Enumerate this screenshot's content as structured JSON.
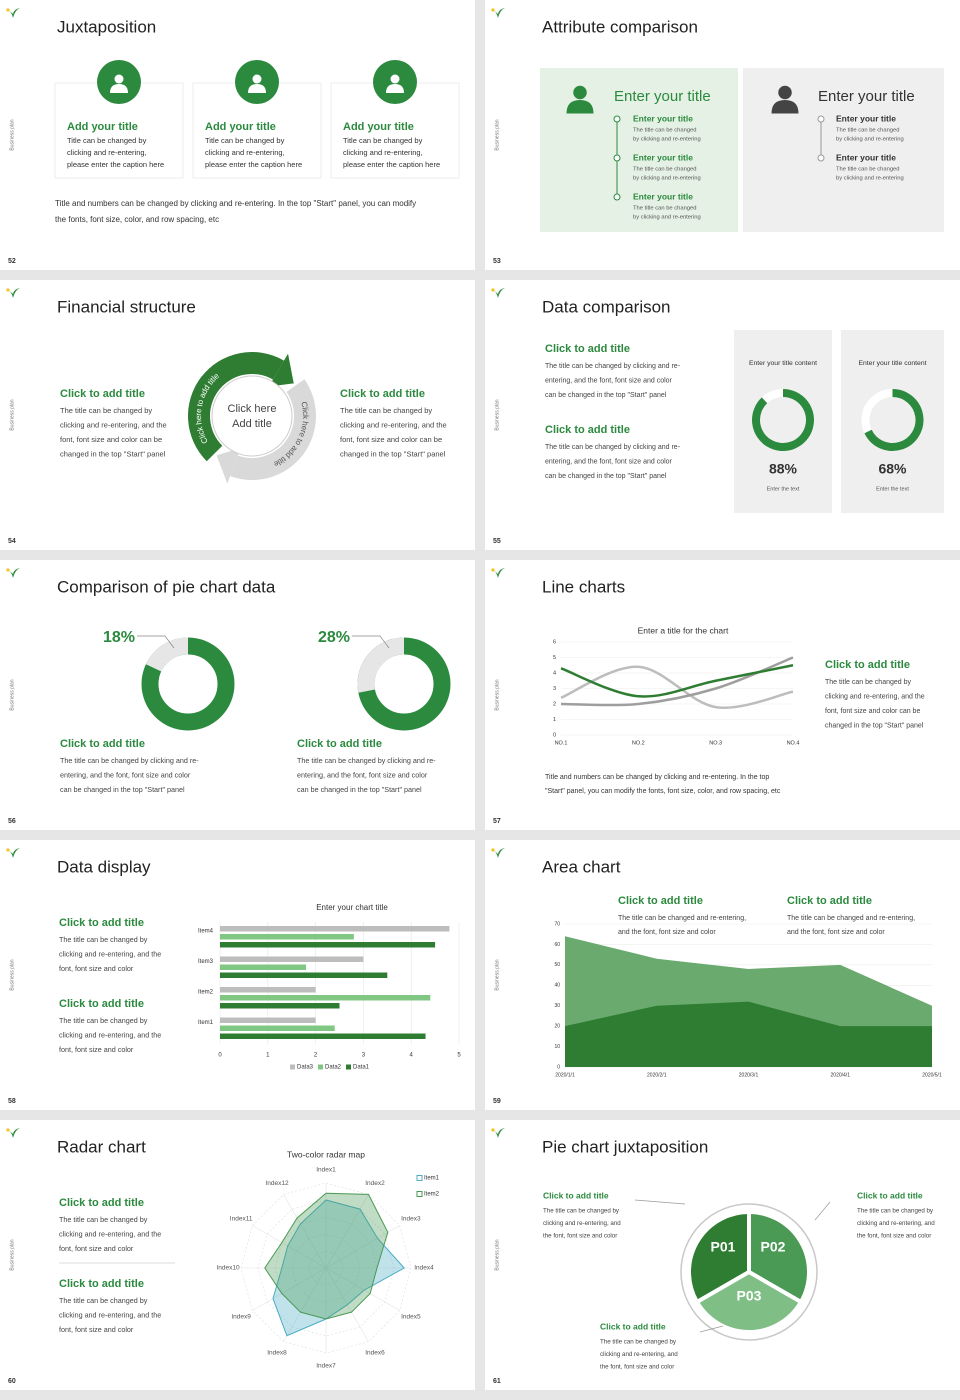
{
  "slides": [
    {
      "number": "52",
      "side": "Business plan",
      "title": "Juxtaposition",
      "cards": [
        {
          "title": "Add your title",
          "lines": [
            "Title can be changed by",
            "clicking and re-entering,",
            "please enter the caption here"
          ]
        },
        {
          "title": "Add your title",
          "lines": [
            "Title can be changed by",
            "clicking and re-entering,",
            "please enter the caption here"
          ]
        },
        {
          "title": "Add your title",
          "lines": [
            "Title can be changed by",
            "clicking and re-entering,",
            "please enter the caption here"
          ]
        }
      ],
      "note": [
        "Title and numbers can be changed by clicking and re-entering. In the top \"Start\" panel, you can modify",
        "the fonts, font size, color, and row spacing, etc"
      ]
    },
    {
      "number": "53",
      "side": "Business plan",
      "title": "Attribute comparison",
      "panels": [
        {
          "title": "Enter your title",
          "items": [
            {
              "title": "Enter your title",
              "lines": [
                "The title can be changed",
                "by clicking and re-entering"
              ]
            },
            {
              "title": "Enter your title",
              "lines": [
                "The title can be changed",
                "by clicking and re-entering"
              ]
            },
            {
              "title": "Enter your title",
              "lines": [
                "The title can be changed",
                "by clicking and re-entering"
              ]
            }
          ]
        },
        {
          "title": "Enter your title",
          "items": [
            {
              "title": "Enter your title",
              "lines": [
                "The title can be changed",
                "by clicking and re-entering"
              ]
            },
            {
              "title": "Enter your title",
              "lines": [
                "The title can be changed",
                "by clicking and re-entering"
              ]
            }
          ]
        }
      ]
    },
    {
      "number": "54",
      "side": "Business plan",
      "title": "Financial structure",
      "blocks": [
        {
          "title": "Click to add title",
          "lines": [
            "The title can be changed by",
            "clicking and re-entering, and the",
            "font, font size and color can be",
            "changed in the top \"Start\" panel"
          ]
        },
        {
          "title": "Click to add title",
          "lines": [
            "The title can be changed by",
            "clicking and re-entering, and the",
            "font, font size and color can be",
            "changed in the top \"Start\" panel"
          ]
        }
      ],
      "center": [
        "Click here",
        "Add title"
      ],
      "arc_labels": [
        "Click here to add title",
        "Click here to add title"
      ]
    },
    {
      "number": "55",
      "side": "Business plan",
      "title": "Data comparison",
      "blocks": [
        {
          "title": "Click to add title",
          "lines": [
            "The title can be changed by clicking and re-",
            "entering, and the font, font size and color",
            "can be changed in the top \"Start\" panel"
          ]
        },
        {
          "title": "Click to add title",
          "lines": [
            "The title can be changed by clicking and re-",
            "entering, and the font, font size and color",
            "can be changed in the top \"Start\" panel"
          ]
        }
      ],
      "cards": [
        {
          "header": "Enter your title content",
          "value": 88,
          "value_label": "88%",
          "caption": "Enter the text"
        },
        {
          "header": "Enter your title content",
          "value": 68,
          "value_label": "68%",
          "caption": "Enter the text"
        }
      ]
    },
    {
      "number": "56",
      "side": "Business plan",
      "title": "Comparison of pie chart data",
      "pies": [
        {
          "value": 18,
          "value_label": "18%",
          "title": "Click to add title",
          "lines": [
            "The title can be changed by clicking and re-",
            "entering, and the font, font size and color",
            "can be changed in the top \"Start\" panel"
          ]
        },
        {
          "value": 28,
          "value_label": "28%",
          "title": "Click to add title",
          "lines": [
            "The title can be changed by clicking and re-",
            "entering, and the font, font size and color",
            "can be changed in the top \"Start\" panel"
          ]
        }
      ]
    },
    {
      "number": "57",
      "side": "Business plan",
      "title": "Line charts",
      "chart_data": {
        "type": "line",
        "title": "Enter a title for the chart",
        "categories": [
          "NO.1",
          "NO.2",
          "NO.3",
          "NO.4"
        ],
        "series": [
          {
            "color": "#bdbdbd",
            "values": [
              2.4,
              4.4,
              1.8,
              2.8
            ]
          },
          {
            "color": "#9e9e9e",
            "values": [
              2,
              2,
              3,
              5
            ]
          },
          {
            "color": "#2e7d32",
            "values": [
              4.3,
              2.5,
              3.5,
              4.5
            ]
          }
        ],
        "ylim": [
          0,
          6
        ],
        "yticks": [
          0,
          1,
          2,
          3,
          4,
          5,
          6
        ],
        "grid": true
      },
      "block": {
        "title": "Click to add title",
        "lines": [
          "The title can be changed by",
          "clicking and re-entering, and the",
          "font, font size and color can be",
          "changed in the top \"Start\" panel"
        ]
      },
      "note": [
        "Title and numbers can be changed by clicking and re-entering. In the top",
        "\"Start\" panel, you can modify the fonts, font size, color, and row spacing, etc"
      ]
    },
    {
      "number": "58",
      "side": "Business plan",
      "title": "Data display",
      "blocks": [
        {
          "title": "Click to add title",
          "lines": [
            "The title can be changed by",
            "clicking and re-entering, and the",
            "font, font size and color"
          ]
        },
        {
          "title": "Click to add title",
          "lines": [
            "The title can be changed by",
            "clicking and re-entering, and the",
            "font, font size and color"
          ]
        }
      ],
      "chart_data": {
        "type": "bar",
        "orientation": "horizontal",
        "title": "Enter your chart title",
        "categories": [
          "Item1",
          "Item2",
          "Item3",
          "Item4"
        ],
        "series": [
          {
            "name": "Data1",
            "color": "#2e7d32",
            "values": [
              4.3,
              2.5,
              3.5,
              4.5
            ]
          },
          {
            "name": "Data2",
            "color": "#81c784",
            "values": [
              2.4,
              4.4,
              1.8,
              2.8
            ]
          },
          {
            "name": "Data3",
            "color": "#bdbdbd",
            "values": [
              2,
              2,
              3,
              4.8
            ]
          }
        ],
        "xlim": [
          0,
          5
        ],
        "xticks": [
          0,
          1,
          2,
          3,
          4,
          5
        ],
        "grid": true,
        "legend": "bottom"
      }
    },
    {
      "number": "59",
      "side": "Business plan",
      "title": "Area chart",
      "blocks": [
        {
          "title": "Click to add title",
          "lines": [
            "The title can be changed and re-entering,",
            "and the font, font size and color"
          ]
        },
        {
          "title": "Click to add title",
          "lines": [
            "The title can be changed and re-entering,",
            "and the font, font size and color"
          ]
        }
      ],
      "chart_data": {
        "type": "area",
        "categories": [
          "2020/1/1",
          "2020/2/1",
          "2020/3/1",
          "2020/4/1",
          "2020/5/1"
        ],
        "series": [
          {
            "color": "#6aaa6e",
            "values": [
              64,
              53,
              48,
              50,
              30
            ]
          },
          {
            "color": "#2e7d32",
            "values": [
              20,
              30,
              32,
              20,
              20
            ]
          }
        ],
        "ylim": [
          0,
          70
        ],
        "yticks": [
          0,
          10,
          20,
          30,
          40,
          50,
          60,
          70
        ],
        "grid": true
      }
    },
    {
      "number": "60",
      "side": "Business plan",
      "title": "Radar chart",
      "blocks": [
        {
          "title": "Click to add title",
          "lines": [
            "The title can be changed by",
            "clicking and re-entering, and the",
            "font, font size and color"
          ]
        },
        {
          "title": "Click to add title",
          "lines": [
            "The title can be changed by",
            "clicking and re-entering, and the",
            "font, font size and color"
          ]
        }
      ],
      "chart_data": {
        "type": "radar",
        "title": "Two-color radar map",
        "categories": [
          "Index1",
          "Index2",
          "Index3",
          "Index4",
          "Index5",
          "Index6",
          "Index7",
          "Index8",
          "Index9",
          "Index10",
          "Index11",
          "Index12"
        ],
        "series": [
          {
            "name": "Item1",
            "color": "#4bacc6",
            "values": [
              4,
              4,
              3.5,
              4.6,
              2.6,
              2.5,
              3,
              4.6,
              3.6,
              2.6,
              2.6,
              3
            ]
          },
          {
            "name": "Item2",
            "color": "#4a9a55",
            "values": [
              4.4,
              5,
              4.2,
              3,
              3,
              3,
              3,
              3,
              3,
              3.6,
              3,
              3.4
            ]
          }
        ],
        "rlim": [
          0,
          5
        ],
        "legend": "top-right"
      }
    },
    {
      "number": "61",
      "side": "Business plan",
      "title": "Pie chart juxtaposition",
      "segments": [
        "P01",
        "P02",
        "P03"
      ],
      "blocks": [
        {
          "title": "Click to add title",
          "lines": [
            "The title can be changed by",
            "clicking and re-entering, and",
            "the font, font size and color"
          ]
        },
        {
          "title": "Click to add title",
          "lines": [
            "The title can be changed by",
            "clicking and re-entering, and",
            "the font, font size and color"
          ]
        },
        {
          "title": "Click to add title",
          "lines": [
            "The title can be changed by",
            "clicking and re-entering, and",
            "the font, font size and color"
          ]
        }
      ]
    }
  ]
}
